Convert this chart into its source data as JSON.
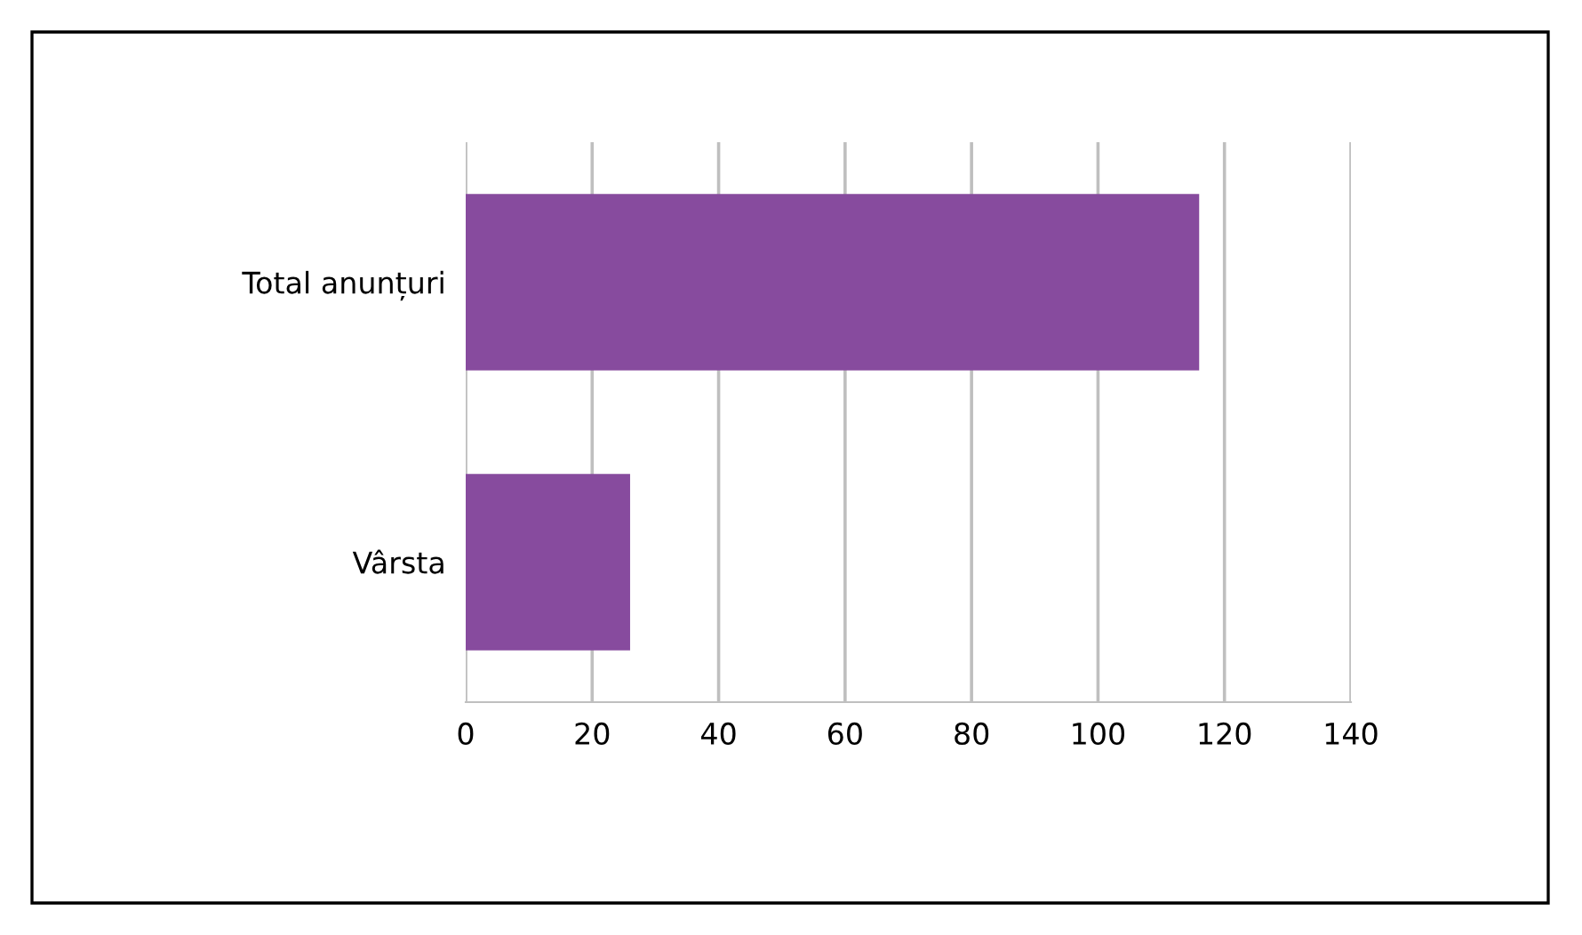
{
  "chart_data": {
    "type": "bar",
    "orientation": "horizontal",
    "categories": [
      "Total anunțuri",
      "Vârsta"
    ],
    "values": [
      116,
      26
    ],
    "color": "#874b9e",
    "xlim": [
      0,
      140
    ],
    "xticks": [
      0,
      20,
      40,
      60,
      80,
      100,
      120,
      140
    ],
    "grid": "x",
    "legend": false
  }
}
